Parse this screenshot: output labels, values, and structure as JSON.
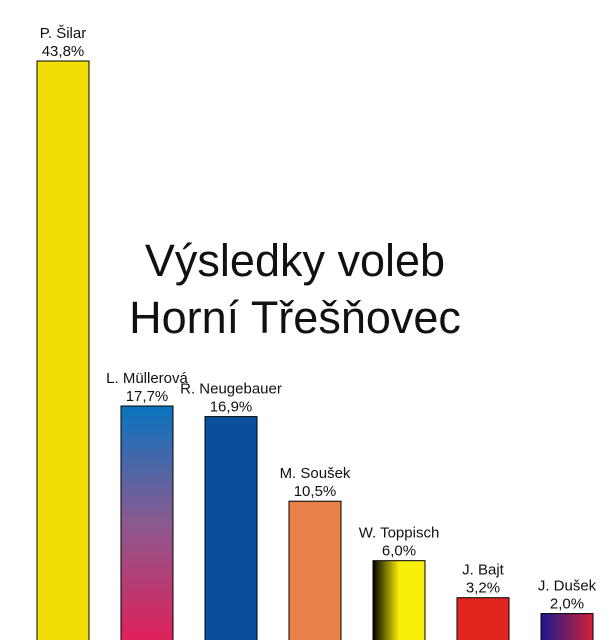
{
  "chart_data": {
    "type": "bar",
    "title": [
      "Výsledky voleb",
      "Horní Třešňovec"
    ],
    "xlabel": "",
    "ylabel": "",
    "ylim": [
      0,
      45
    ],
    "grid": false,
    "legend": "none",
    "categories": [
      "P. Šilar",
      "L. Müllerová",
      "R. Neugebauer",
      "M. Soušek",
      "W. Toppisch",
      "J. Bajt",
      "J. Dušek"
    ],
    "values": [
      43.8,
      17.7,
      16.9,
      10.5,
      6.0,
      3.2,
      2.0
    ],
    "value_labels": [
      "43,8%",
      "17,7%",
      "16,9%",
      "10,5%",
      "6,0%",
      "3,2%",
      "2,0%"
    ],
    "bar_fills": [
      {
        "type": "solid",
        "colors": [
          "#f2de05"
        ]
      },
      {
        "type": "vertical-gradient",
        "colors": [
          "#0a73bf",
          "#8a5a8f",
          "#e0205a"
        ]
      },
      {
        "type": "solid",
        "colors": [
          "#0a4f9c"
        ]
      },
      {
        "type": "solid",
        "colors": [
          "#e8804a"
        ]
      },
      {
        "type": "horizontal-gradient",
        "colors": [
          "#000000",
          "#f7ee0a",
          "#f7ee0a"
        ]
      },
      {
        "type": "solid",
        "colors": [
          "#e0241e"
        ]
      },
      {
        "type": "horizontal-gradient",
        "colors": [
          "#1a1a8c",
          "#d0203a"
        ]
      }
    ]
  }
}
